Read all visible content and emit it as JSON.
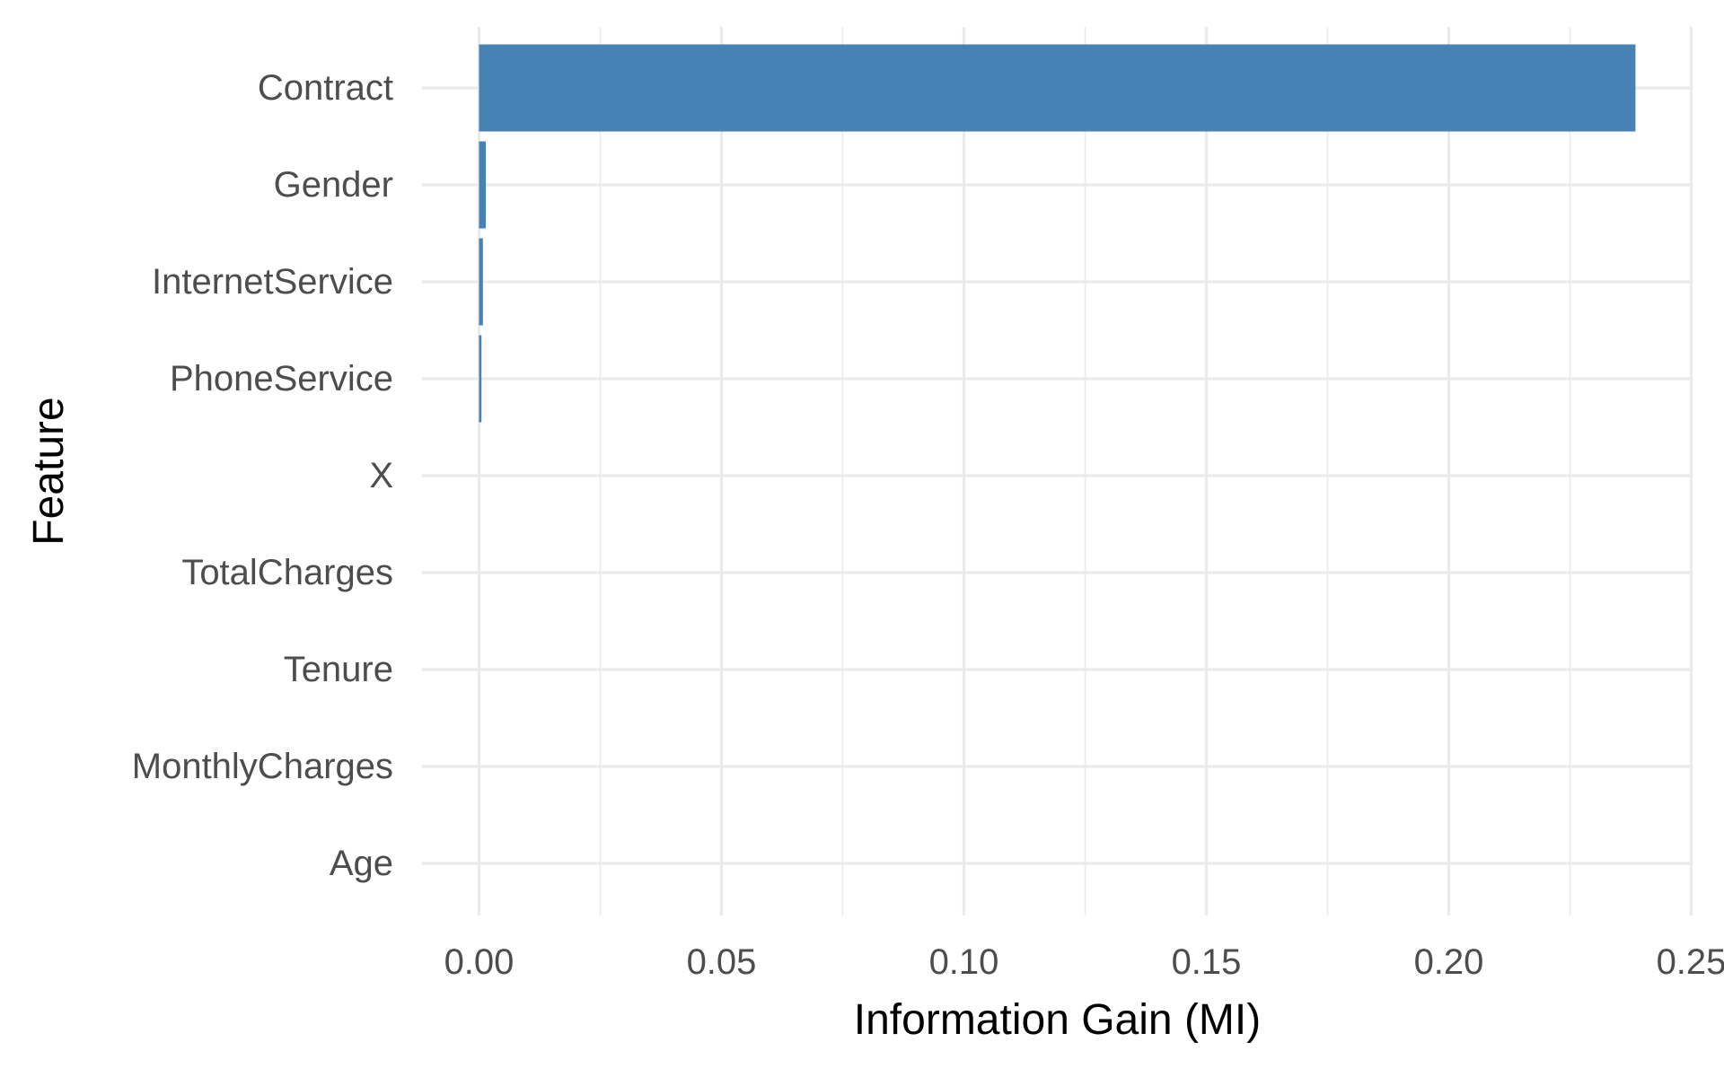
{
  "chart_data": {
    "type": "bar",
    "orientation": "horizontal",
    "title": "",
    "xlabel": "Information Gain (MI)",
    "ylabel": "Feature",
    "categories": [
      "Contract",
      "Gender",
      "InternetService",
      "PhoneService",
      "X",
      "TotalCharges",
      "Tenure",
      "MonthlyCharges",
      "Age"
    ],
    "values": [
      0.2385,
      0.0014,
      0.0008,
      0.0005,
      0.0,
      0.0,
      0.0,
      0.0,
      0.0
    ],
    "xlim": [
      -0.012,
      0.25
    ],
    "x_ticks": [
      0.0,
      0.05,
      0.1,
      0.15,
      0.2,
      0.25
    ],
    "x_tick_labels": [
      "0.00",
      "0.05",
      "0.10",
      "0.15",
      "0.20",
      "0.25"
    ],
    "grid": true,
    "legend": "none",
    "bar_color": "#4682B4",
    "grid_color": "#EBEBEB"
  }
}
